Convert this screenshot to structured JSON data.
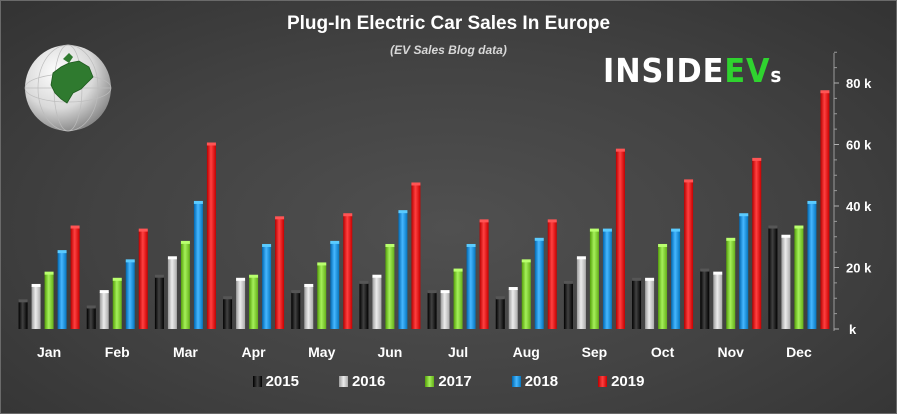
{
  "chart_data": {
    "type": "bar",
    "title": "Plug-In Electric Car Sales In Europe",
    "subtitle": "(EV Sales Blog data)",
    "categories": [
      "Jan",
      "Feb",
      "Mar",
      "Apr",
      "May",
      "Jun",
      "Jul",
      "Aug",
      "Sep",
      "Oct",
      "Nov",
      "Dec"
    ],
    "series": [
      {
        "name": "2015",
        "color": "#1a1a1a",
        "values": [
          9,
          7,
          17,
          10,
          12,
          15,
          12,
          10,
          15,
          16,
          19,
          33
        ]
      },
      {
        "name": "2016",
        "color": "#c4c4c4",
        "values": [
          14,
          12,
          23,
          16,
          14,
          17,
          12,
          13,
          23,
          16,
          18,
          30
        ]
      },
      {
        "name": "2017",
        "color": "#7dc832",
        "values": [
          18,
          16,
          28,
          17,
          21,
          27,
          19,
          22,
          32,
          27,
          29,
          33
        ]
      },
      {
        "name": "2018",
        "color": "#1e8fd8",
        "values": [
          25,
          22,
          41,
          27,
          28,
          38,
          27,
          29,
          32,
          32,
          37,
          41
        ]
      },
      {
        "name": "2019",
        "color": "#e01818",
        "values": [
          33,
          32,
          60,
          36,
          37,
          47,
          35,
          35,
          58,
          48,
          55,
          77
        ]
      }
    ],
    "y_ticks": [
      {
        "value": 0,
        "label": "k"
      },
      {
        "value": 20,
        "label": "20 k"
      },
      {
        "value": 40,
        "label": "40 k"
      },
      {
        "value": 60,
        "label": "60 k"
      },
      {
        "value": 80,
        "label": "80 k"
      }
    ],
    "ylim": [
      0,
      90
    ],
    "grid": false,
    "legend": "bottom"
  },
  "branding": {
    "logo_main": "INSIDE",
    "logo_ev": "EV",
    "logo_s": "s",
    "globe": "europe-globe-icon"
  }
}
